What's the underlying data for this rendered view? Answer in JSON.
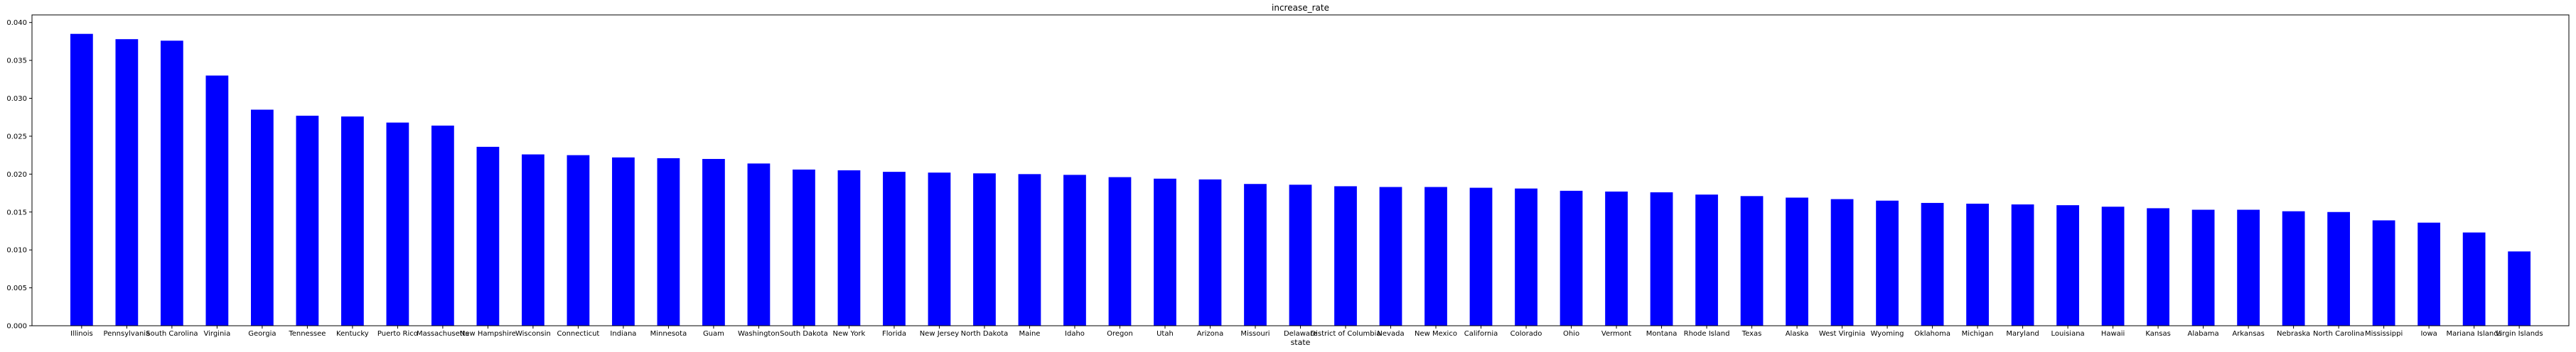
{
  "chart_data": {
    "type": "bar",
    "title": "increase_rate",
    "xlabel": "state",
    "ylabel": "",
    "ylim": [
      0,
      0.041
    ],
    "yticks": [
      "0.000",
      "0.005",
      "0.010",
      "0.015",
      "0.020",
      "0.025",
      "0.030",
      "0.035",
      "0.040"
    ],
    "grid": false,
    "bar_color": "#0000ff",
    "categories": [
      "Illinois",
      "Pennsylvania",
      "South Carolina",
      "Virginia",
      "Georgia",
      "Tennessee",
      "Kentucky",
      "Puerto Rico",
      "Massachusetts",
      "New Hampshire",
      "Wisconsin",
      "Connecticut",
      "Indiana",
      "Minnesota",
      "Guam",
      "Washington",
      "South Dakota",
      "New York",
      "Florida",
      "New Jersey",
      "North Dakota",
      "Maine",
      "Idaho",
      "Oregon",
      "Utah",
      "Arizona",
      "Missouri",
      "Delaware",
      "District of Columbia",
      "Nevada",
      "New Mexico",
      "California",
      "Colorado",
      "Ohio",
      "Vermont",
      "Montana",
      "Rhode Island",
      "Texas",
      "Alaska",
      "West Virginia",
      "Wyoming",
      "Oklahoma",
      "Michigan",
      "Maryland",
      "Louisiana",
      "Hawaii",
      "Kansas",
      "Alabama",
      "Arkansas",
      "Nebraska",
      "North Carolina",
      "Mississippi",
      "Iowa",
      "Mariana Islands",
      "Virgin Islands"
    ],
    "values": [
      0.0385,
      0.0378,
      0.0376,
      0.033,
      0.0285,
      0.0277,
      0.0276,
      0.0268,
      0.0264,
      0.0236,
      0.0226,
      0.0225,
      0.0222,
      0.0221,
      0.022,
      0.0214,
      0.0206,
      0.0205,
      0.0203,
      0.0202,
      0.0201,
      0.02,
      0.0199,
      0.0196,
      0.0194,
      0.0193,
      0.0187,
      0.0186,
      0.0184,
      0.0183,
      0.0183,
      0.0182,
      0.0181,
      0.0178,
      0.0177,
      0.0176,
      0.0173,
      0.0171,
      0.0169,
      0.0167,
      0.0165,
      0.0162,
      0.0161,
      0.016,
      0.0159,
      0.0157,
      0.0155,
      0.0153,
      0.0153,
      0.0151,
      0.015,
      0.0139,
      0.0136,
      0.0123,
      0.0098
    ]
  }
}
